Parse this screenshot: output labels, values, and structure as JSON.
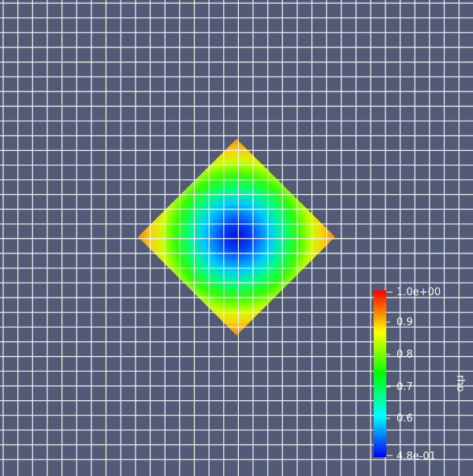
{
  "viewer": {
    "background": "#525a76",
    "grid_color": "#ffffff",
    "representation": "Surface With Edges",
    "colormap": "Rainbow Uniform"
  },
  "field": {
    "name": "rho",
    "min": 0.48,
    "max": 1.0,
    "pattern": "radial density dip centered on a diamond (45° rotated square) patch"
  },
  "color_legend": {
    "title": "rho",
    "labels": {
      "top": "1.0e+00",
      "t09": "0.9",
      "t08": "0.8",
      "t07": "0.7",
      "t06": "0.6",
      "bottom": "4.8e-01"
    },
    "colors": [
      "#0000ff",
      "#00ffff",
      "#00ff00",
      "#ffff00",
      "#ff0000"
    ]
  }
}
